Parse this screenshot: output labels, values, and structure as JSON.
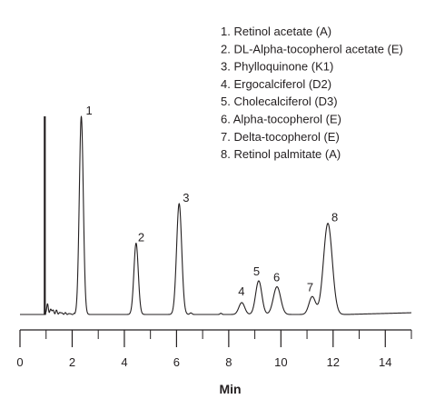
{
  "chart_data": {
    "type": "line",
    "title": "",
    "xlabel": "Min",
    "ylabel": "",
    "xlim": [
      0,
      15
    ],
    "ylim": [
      0,
      100
    ],
    "grid": false,
    "x_ticks": [
      0,
      2,
      4,
      6,
      8,
      10,
      12,
      14
    ],
    "x_tick_labels": [
      "0",
      "2",
      "4",
      "6",
      "8",
      "10",
      "12",
      "14"
    ],
    "legend_placement": "top-right",
    "legend": [
      "1. Retinol acetate (A)",
      "2. DL-Alpha-tocopherol acetate (E)",
      "3. Phylloquinone (K1)",
      "4. Ergocalciferol (D2)",
      "5. Cholecalciferol (D3)",
      "6. Alpha-tocopherol (E)",
      "7. Delta-tocopherol (E)",
      "8. Retinol palmitate (A)"
    ],
    "baseline": 0,
    "void_peak": {
      "time": 0.95,
      "height": 100
    },
    "peaks": [
      {
        "label": "1",
        "time": 2.35,
        "height": 100
      },
      {
        "label": "2",
        "time": 4.45,
        "height": 36
      },
      {
        "label": "3",
        "time": 6.1,
        "height": 56
      },
      {
        "label": "4",
        "time": 8.5,
        "height": 6
      },
      {
        "label": "5",
        "time": 9.15,
        "height": 17
      },
      {
        "label": "6",
        "time": 9.85,
        "height": 14
      },
      {
        "label": "7",
        "time": 11.2,
        "height": 9
      },
      {
        "label": "8",
        "time": 11.8,
        "height": 46
      }
    ],
    "line_color": "#231f20"
  }
}
